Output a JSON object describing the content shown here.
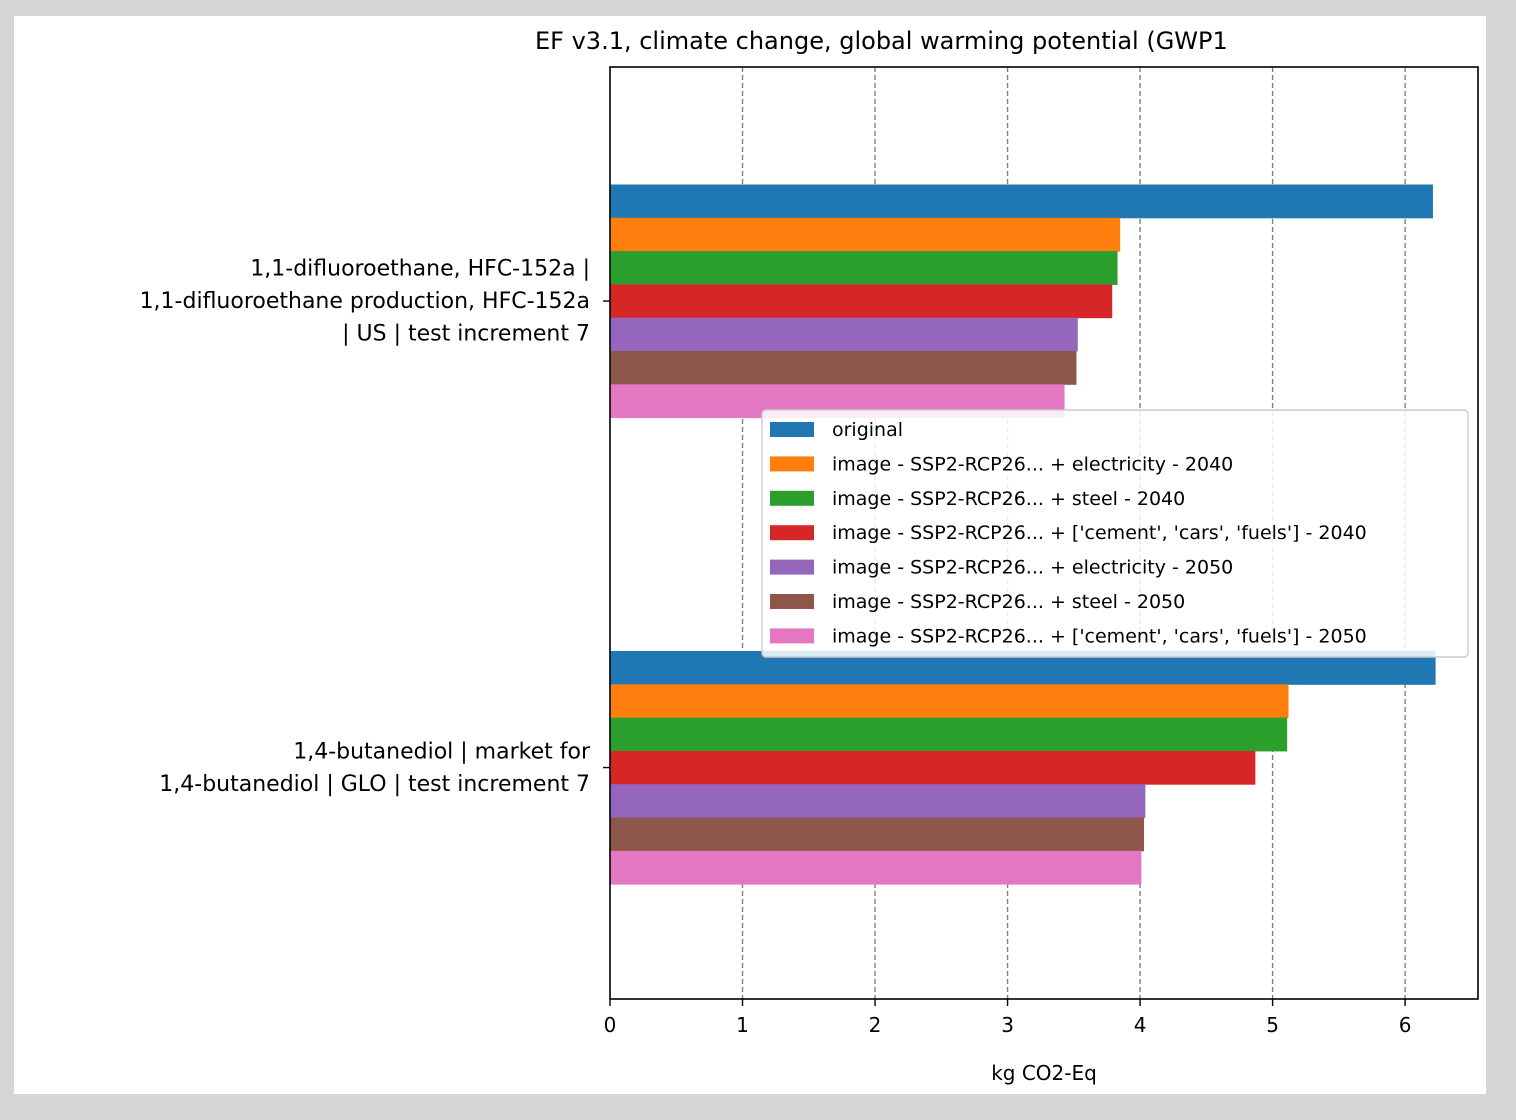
{
  "chart_data": {
    "type": "bar",
    "orientation": "horizontal",
    "title": "EF v3.1, climate change, global warming potential (GWP1",
    "xlabel": "kg CO2-Eq",
    "ylabel": "",
    "xlim": [
      0,
      6.55
    ],
    "xticks": [
      "0",
      "1",
      "2",
      "3",
      "4",
      "5",
      "6"
    ],
    "grid": "vertical dashed",
    "legend_position": "center-right",
    "categories": [
      [
        "1,1-difluoroethane, HFC-152a |",
        "1,1-difluoroethane production, HFC-152a",
        "| US | test increment 7"
      ],
      [
        "1,4-butanediol | market for",
        "1,4-butanediol | GLO | test increment 7"
      ]
    ],
    "series": [
      {
        "name": "original",
        "color": "#1f77b4",
        "values": [
          6.21,
          6.23
        ]
      },
      {
        "name": "image - SSP2-RCP26... + electricity - 2040",
        "color": "#ff7f0e",
        "values": [
          3.85,
          5.12
        ]
      },
      {
        "name": "image - SSP2-RCP26... + steel - 2040",
        "color": "#2ca02c",
        "values": [
          3.83,
          5.11
        ]
      },
      {
        "name": "image - SSP2-RCP26... + ['cement', 'cars', 'fuels'] - 2040",
        "color": "#d62728",
        "values": [
          3.79,
          4.87
        ]
      },
      {
        "name": "image - SSP2-RCP26... + electricity - 2050",
        "color": "#9467bd",
        "values": [
          3.53,
          4.04
        ]
      },
      {
        "name": "image - SSP2-RCP26... + steel - 2050",
        "color": "#8c564b",
        "values": [
          3.52,
          4.03
        ]
      },
      {
        "name": "image - SSP2-RCP26... + ['cement', 'cars', 'fuels'] - 2050",
        "color": "#e377c2",
        "values": [
          3.43,
          4.01
        ]
      }
    ]
  }
}
